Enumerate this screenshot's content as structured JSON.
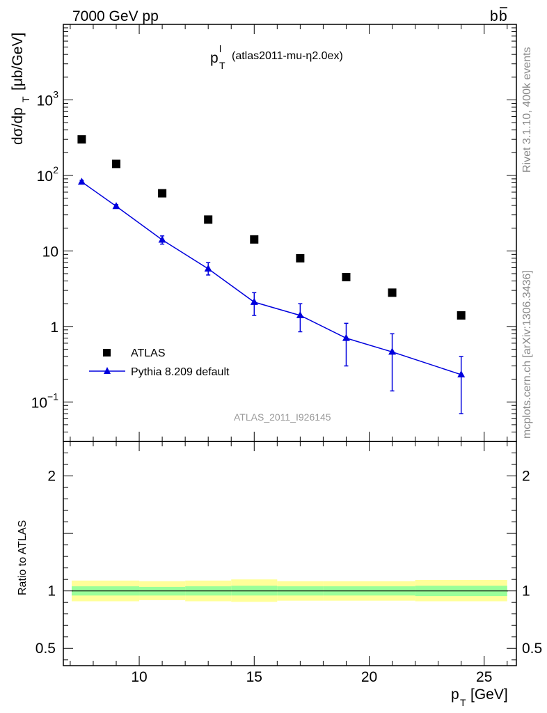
{
  "header": {
    "left": "7000 GeV pp",
    "right_base": "b",
    "right_bar": "b"
  },
  "side_labels": {
    "top": "Rivet 3.1.10,  400k events",
    "bottom": "mcplots.cern.ch [arXiv:1306.3436]"
  },
  "colors": {
    "data": "#000000",
    "mc": "#0000dd",
    "band_inner": "#99ff99",
    "band_outer": "#ffff99"
  },
  "chart_data": [
    {
      "type": "scatter",
      "title_main": "p",
      "title_sup": "l",
      "title_sub": "T",
      "title_rest": "(atlas2011-mu-η2.0ex)",
      "ylabel_main": "dσ/dp",
      "ylabel_sub": "T",
      "ylabel_unit": "[μb/GeV]",
      "analysis_id": "ATLAS_2011_I926145",
      "xlim": [
        6.7,
        26.4
      ],
      "ylim": [
        0.03,
        10000
      ],
      "yscale": "log",
      "yticks": [
        {
          "value": 1000,
          "base": "10",
          "exp": "3"
        },
        {
          "value": 100,
          "base": "10",
          "exp": "2"
        },
        {
          "value": 10,
          "base": "10",
          "exp": ""
        },
        {
          "value": 1,
          "base": "1",
          "exp": ""
        },
        {
          "value": 0.1,
          "base": "10",
          "exp": "−1"
        }
      ],
      "legend_position": "bottom-left",
      "series": [
        {
          "name": "ATLAS",
          "marker": "square",
          "x": [
            7.5,
            9,
            11,
            13,
            15,
            17,
            19,
            21,
            24
          ],
          "y": [
            300,
            142,
            58,
            26,
            14.2,
            8.0,
            4.5,
            2.8,
            1.4
          ]
        },
        {
          "name": "Pythia 8.209 default",
          "marker": "triangle",
          "x": [
            7.5,
            9,
            11,
            13,
            15,
            17,
            19,
            21,
            24
          ],
          "y": [
            82,
            39,
            14,
            5.8,
            2.1,
            1.4,
            0.7,
            0.46,
            0.23
          ],
          "y_lo": [
            78,
            37,
            12.3,
            4.8,
            1.4,
            0.85,
            0.3,
            0.14,
            0.07
          ],
          "y_hi": [
            86,
            41,
            15.8,
            7.0,
            2.8,
            2.0,
            1.1,
            0.8,
            0.4
          ]
        }
      ]
    },
    {
      "type": "area",
      "ylabel": "Ratio to ATLAS",
      "xlabel_main": "p",
      "xlabel_sub": "T",
      "xlabel_unit": "[GeV]",
      "xlim": [
        6.7,
        26.4
      ],
      "ylim": [
        0.35,
        2.3
      ],
      "xticks": [
        10,
        15,
        20,
        25
      ],
      "yticks": [
        0.5,
        1,
        2
      ],
      "line": 1,
      "bands": {
        "edges": [
          6.7,
          10,
          12,
          14,
          16,
          18,
          20,
          22,
          26
        ],
        "inner_lo": [
          0.96,
          0.96,
          0.96,
          0.96,
          0.96,
          0.96,
          0.96,
          0.955
        ],
        "inner_hi": [
          1.04,
          1.035,
          1.04,
          1.045,
          1.04,
          1.04,
          1.04,
          1.045
        ],
        "outer_lo": [
          0.91,
          0.92,
          0.91,
          0.905,
          0.915,
          0.915,
          0.915,
          0.91
        ],
        "outer_hi": [
          1.09,
          1.085,
          1.09,
          1.1,
          1.085,
          1.085,
          1.085,
          1.095
        ]
      }
    }
  ]
}
